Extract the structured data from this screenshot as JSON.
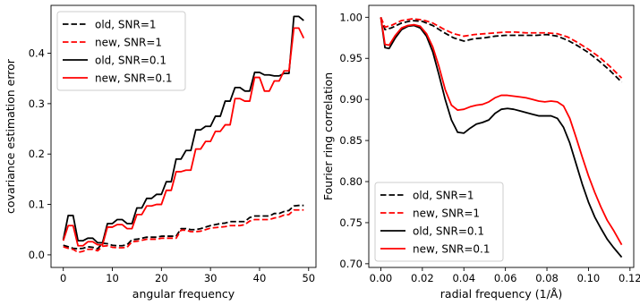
{
  "chart_data": [
    {
      "type": "line",
      "xlabel": "angular frequency",
      "ylabel": "covariance estimation error",
      "xlim": [
        -2.5,
        51.5
      ],
      "ylim": [
        -0.025,
        0.495
      ],
      "xticks": [
        0,
        10,
        20,
        30,
        40,
        50
      ],
      "yticks": [
        0.0,
        0.1,
        0.2,
        0.3,
        0.4
      ],
      "xtick_labels": [
        "0",
        "10",
        "20",
        "30",
        "40",
        "50"
      ],
      "ytick_labels": [
        "0.0",
        "0.1",
        "0.2",
        "0.3",
        "0.4"
      ],
      "legend_position": "upper-left",
      "grid": false,
      "series": [
        {
          "name": "old, SNR=1",
          "color": "#000000",
          "dash": "dashed",
          "x": [
            0,
            1,
            2,
            3,
            4,
            5,
            6,
            7,
            8,
            9,
            10,
            11,
            12,
            13,
            14,
            15,
            16,
            17,
            18,
            19,
            20,
            21,
            22,
            23,
            24,
            25,
            26,
            27,
            28,
            29,
            30,
            31,
            32,
            33,
            34,
            35,
            36,
            37,
            38,
            39,
            40,
            41,
            42,
            43,
            44,
            45,
            46,
            47,
            48,
            49
          ],
          "values": [
            0.019,
            0.016,
            0.013,
            0.012,
            0.013,
            0.016,
            0.015,
            0.012,
            0.023,
            0.022,
            0.019,
            0.018,
            0.018,
            0.02,
            0.03,
            0.031,
            0.033,
            0.035,
            0.035,
            0.035,
            0.037,
            0.037,
            0.037,
            0.037,
            0.052,
            0.052,
            0.05,
            0.05,
            0.052,
            0.055,
            0.058,
            0.06,
            0.062,
            0.063,
            0.066,
            0.066,
            0.066,
            0.066,
            0.074,
            0.077,
            0.077,
            0.077,
            0.077,
            0.082,
            0.082,
            0.086,
            0.088,
            0.097,
            0.098,
            0.098
          ]
        },
        {
          "name": "new, SNR=1",
          "color": "#ff0000",
          "dash": "dashed",
          "x": [
            0,
            1,
            2,
            3,
            4,
            5,
            6,
            7,
            8,
            9,
            10,
            11,
            12,
            13,
            14,
            15,
            16,
            17,
            18,
            19,
            20,
            21,
            22,
            23,
            24,
            25,
            26,
            27,
            28,
            29,
            30,
            31,
            32,
            33,
            34,
            35,
            36,
            37,
            38,
            39,
            40,
            41,
            42,
            43,
            44,
            45,
            46,
            47,
            48,
            49
          ],
          "values": [
            0.016,
            0.013,
            0.011,
            0.005,
            0.007,
            0.011,
            0.011,
            0.008,
            0.017,
            0.018,
            0.015,
            0.014,
            0.014,
            0.015,
            0.026,
            0.027,
            0.029,
            0.031,
            0.031,
            0.031,
            0.033,
            0.033,
            0.033,
            0.033,
            0.049,
            0.049,
            0.046,
            0.046,
            0.047,
            0.05,
            0.053,
            0.054,
            0.055,
            0.056,
            0.058,
            0.058,
            0.058,
            0.06,
            0.067,
            0.07,
            0.07,
            0.07,
            0.07,
            0.073,
            0.075,
            0.079,
            0.08,
            0.089,
            0.089,
            0.089
          ]
        },
        {
          "name": "old, SNR=0.1",
          "color": "#000000",
          "dash": "solid",
          "x": [
            0,
            1,
            2,
            3,
            4,
            5,
            6,
            7,
            8,
            9,
            10,
            11,
            12,
            13,
            14,
            15,
            16,
            17,
            18,
            19,
            20,
            21,
            22,
            23,
            24,
            25,
            26,
            27,
            28,
            29,
            30,
            31,
            32,
            33,
            34,
            35,
            36,
            37,
            38,
            39,
            40,
            41,
            42,
            43,
            44,
            45,
            46,
            47,
            48,
            49
          ],
          "values": [
            0.03,
            0.078,
            0.078,
            0.028,
            0.028,
            0.033,
            0.033,
            0.024,
            0.024,
            0.062,
            0.062,
            0.07,
            0.07,
            0.062,
            0.062,
            0.093,
            0.093,
            0.112,
            0.112,
            0.12,
            0.12,
            0.145,
            0.145,
            0.19,
            0.19,
            0.207,
            0.207,
            0.248,
            0.248,
            0.255,
            0.255,
            0.275,
            0.275,
            0.305,
            0.305,
            0.332,
            0.332,
            0.325,
            0.325,
            0.362,
            0.362,
            0.357,
            0.357,
            0.355,
            0.355,
            0.36,
            0.36,
            0.473,
            0.473,
            0.465
          ]
        },
        {
          "name": "new, SNR=0.1",
          "color": "#ff0000",
          "dash": "solid",
          "x": [
            0,
            1,
            2,
            3,
            4,
            5,
            6,
            7,
            8,
            9,
            10,
            11,
            12,
            13,
            14,
            15,
            16,
            17,
            18,
            19,
            20,
            21,
            22,
            23,
            24,
            25,
            26,
            27,
            28,
            29,
            30,
            31,
            32,
            33,
            34,
            35,
            36,
            37,
            38,
            39,
            40,
            41,
            42,
            43,
            44,
            45,
            46,
            47,
            48,
            49
          ],
          "values": [
            0.028,
            0.058,
            0.058,
            0.018,
            0.018,
            0.026,
            0.026,
            0.02,
            0.02,
            0.055,
            0.055,
            0.06,
            0.06,
            0.052,
            0.052,
            0.08,
            0.08,
            0.097,
            0.097,
            0.1,
            0.1,
            0.128,
            0.128,
            0.165,
            0.165,
            0.168,
            0.168,
            0.21,
            0.21,
            0.225,
            0.225,
            0.245,
            0.245,
            0.258,
            0.258,
            0.31,
            0.31,
            0.305,
            0.305,
            0.352,
            0.352,
            0.325,
            0.325,
            0.345,
            0.345,
            0.365,
            0.365,
            0.45,
            0.45,
            0.43
          ]
        }
      ]
    },
    {
      "type": "line",
      "xlabel": "radial frequency (1/Å)",
      "ylabel": "Fourier ring correlation",
      "xlim": [
        -0.0058,
        0.1218
      ],
      "ylim": [
        0.6955,
        1.0145
      ],
      "xticks": [
        0.0,
        0.02,
        0.04,
        0.06,
        0.08,
        0.1,
        0.12
      ],
      "yticks": [
        0.7,
        0.75,
        0.8,
        0.85,
        0.9,
        0.95,
        1.0
      ],
      "xtick_labels": [
        "0.00",
        "0.02",
        "0.04",
        "0.06",
        "0.08",
        "0.10",
        "0.12"
      ],
      "ytick_labels": [
        "0.70",
        "0.75",
        "0.80",
        "0.85",
        "0.90",
        "0.95",
        "1.00"
      ],
      "legend_position": "lower-left",
      "grid": false,
      "series": [
        {
          "name": "old, SNR=1",
          "color": "#000000",
          "dash": "dashed",
          "x": [
            0.0,
            0.002,
            0.005,
            0.01,
            0.015,
            0.02,
            0.025,
            0.03,
            0.035,
            0.04,
            0.045,
            0.05,
            0.055,
            0.06,
            0.065,
            0.07,
            0.075,
            0.08,
            0.085,
            0.09,
            0.095,
            0.1,
            0.105,
            0.11,
            0.116
          ],
          "values": [
            1.0,
            0.985,
            0.987,
            0.993,
            0.996,
            0.995,
            0.99,
            0.982,
            0.975,
            0.971,
            0.974,
            0.975,
            0.977,
            0.978,
            0.978,
            0.978,
            0.978,
            0.979,
            0.977,
            0.972,
            0.965,
            0.957,
            0.947,
            0.936,
            0.921
          ]
        },
        {
          "name": "new, SNR=1",
          "color": "#ff0000",
          "dash": "dashed",
          "x": [
            0.0,
            0.002,
            0.005,
            0.01,
            0.015,
            0.02,
            0.025,
            0.03,
            0.035,
            0.04,
            0.045,
            0.05,
            0.055,
            0.06,
            0.065,
            0.07,
            0.075,
            0.08,
            0.085,
            0.09,
            0.095,
            0.1,
            0.105,
            0.11,
            0.116
          ],
          "values": [
            1.0,
            0.988,
            0.99,
            0.996,
            0.998,
            0.997,
            0.993,
            0.986,
            0.98,
            0.977,
            0.979,
            0.98,
            0.981,
            0.982,
            0.982,
            0.981,
            0.981,
            0.981,
            0.98,
            0.976,
            0.969,
            0.961,
            0.952,
            0.941,
            0.926
          ]
        },
        {
          "name": "old, SNR=0.1",
          "color": "#000000",
          "dash": "solid",
          "x": [
            0.0,
            0.002,
            0.004,
            0.007,
            0.01,
            0.013,
            0.016,
            0.019,
            0.022,
            0.025,
            0.028,
            0.031,
            0.034,
            0.037,
            0.04,
            0.043,
            0.046,
            0.049,
            0.052,
            0.055,
            0.058,
            0.061,
            0.064,
            0.067,
            0.07,
            0.073,
            0.076,
            0.079,
            0.082,
            0.085,
            0.088,
            0.091,
            0.094,
            0.097,
            0.1,
            0.103,
            0.106,
            0.109,
            0.112,
            0.116
          ],
          "values": [
            1.0,
            0.963,
            0.962,
            0.975,
            0.985,
            0.989,
            0.99,
            0.987,
            0.977,
            0.958,
            0.93,
            0.9,
            0.875,
            0.86,
            0.859,
            0.865,
            0.87,
            0.872,
            0.875,
            0.883,
            0.888,
            0.889,
            0.888,
            0.886,
            0.884,
            0.882,
            0.88,
            0.88,
            0.88,
            0.877,
            0.866,
            0.847,
            0.822,
            0.797,
            0.775,
            0.757,
            0.743,
            0.73,
            0.72,
            0.708
          ]
        },
        {
          "name": "new, SNR=0.1",
          "color": "#ff0000",
          "dash": "solid",
          "x": [
            0.0,
            0.002,
            0.004,
            0.007,
            0.01,
            0.013,
            0.016,
            0.019,
            0.022,
            0.025,
            0.028,
            0.031,
            0.034,
            0.037,
            0.04,
            0.043,
            0.046,
            0.049,
            0.052,
            0.055,
            0.058,
            0.061,
            0.064,
            0.067,
            0.07,
            0.073,
            0.076,
            0.079,
            0.082,
            0.085,
            0.088,
            0.091,
            0.094,
            0.097,
            0.1,
            0.103,
            0.106,
            0.109,
            0.112,
            0.116
          ],
          "values": [
            1.0,
            0.967,
            0.966,
            0.978,
            0.987,
            0.99,
            0.991,
            0.989,
            0.98,
            0.964,
            0.94,
            0.912,
            0.893,
            0.887,
            0.888,
            0.891,
            0.893,
            0.894,
            0.897,
            0.902,
            0.905,
            0.905,
            0.904,
            0.903,
            0.902,
            0.9,
            0.898,
            0.897,
            0.898,
            0.897,
            0.892,
            0.877,
            0.854,
            0.83,
            0.807,
            0.787,
            0.769,
            0.753,
            0.741,
            0.723
          ]
        }
      ]
    }
  ]
}
